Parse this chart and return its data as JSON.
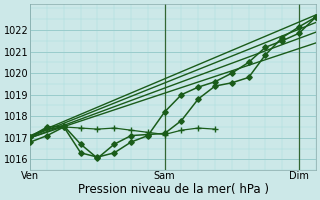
{
  "bg_color": "#cce8e8",
  "grid_major_color": "#99cccc",
  "grid_minor_color": "#aadddd",
  "line_color": "#1a5c1a",
  "vline_color": "#336633",
  "ylim": [
    1015.5,
    1023.2
  ],
  "ytick_values": [
    1016,
    1017,
    1018,
    1019,
    1020,
    1021,
    1022
  ],
  "xtick_positions": [
    0,
    24,
    48
  ],
  "xtick_labels": [
    "Ven",
    "Sam",
    "Dim"
  ],
  "xlim_max": 51,
  "xlabel": "Pression niveau de la mer( hPa )",
  "xlabel_fontsize": 8.5,
  "tick_fontsize": 7,
  "vlines": [
    24,
    48
  ],
  "series": [
    {
      "x": [
        0,
        3,
        6,
        9,
        12,
        15,
        18,
        21,
        24,
        27,
        30,
        33,
        36,
        39,
        42,
        45,
        48,
        51
      ],
      "y": [
        1016.8,
        1017.1,
        1017.5,
        1016.3,
        1016.1,
        1016.3,
        1016.8,
        1017.1,
        1018.2,
        1019.0,
        1019.35,
        1019.6,
        1020.0,
        1020.5,
        1021.2,
        1021.5,
        1021.85,
        1022.6
      ],
      "marker": "D",
      "ms": 2.8,
      "lw": 1.1,
      "zorder": 6
    },
    {
      "x": [
        0,
        51
      ],
      "y": [
        1017.1,
        1022.7
      ],
      "marker": null,
      "ms": 0,
      "lw": 1.0,
      "zorder": 3
    },
    {
      "x": [
        0,
        51
      ],
      "y": [
        1017.05,
        1022.35
      ],
      "marker": null,
      "ms": 0,
      "lw": 1.0,
      "zorder": 3
    },
    {
      "x": [
        0,
        51
      ],
      "y": [
        1017.0,
        1021.9
      ],
      "marker": null,
      "ms": 0,
      "lw": 1.0,
      "zorder": 3
    },
    {
      "x": [
        0,
        51
      ],
      "y": [
        1017.0,
        1021.4
      ],
      "marker": null,
      "ms": 0,
      "lw": 1.0,
      "zorder": 3
    },
    {
      "x": [
        0,
        3,
        6,
        9,
        12,
        15,
        18,
        21,
        24,
        27,
        30,
        33
      ],
      "y": [
        1017.05,
        1017.4,
        1017.5,
        1017.45,
        1017.4,
        1017.45,
        1017.35,
        1017.25,
        1017.15,
        1017.35,
        1017.45,
        1017.4
      ],
      "marker": "+",
      "ms": 4,
      "lw": 0.9,
      "zorder": 5
    },
    {
      "x": [
        0,
        3,
        6,
        9,
        12,
        15,
        18,
        21,
        24,
        27,
        30,
        33,
        36,
        39,
        42,
        45,
        48,
        51
      ],
      "y": [
        1017.05,
        1017.5,
        1017.55,
        1016.7,
        1016.05,
        1016.7,
        1017.1,
        1017.15,
        1017.2,
        1017.8,
        1018.8,
        1019.4,
        1019.55,
        1019.8,
        1020.85,
        1021.65,
        1022.15,
        1022.6
      ],
      "marker": "D",
      "ms": 2.8,
      "lw": 1.1,
      "zorder": 6
    }
  ]
}
